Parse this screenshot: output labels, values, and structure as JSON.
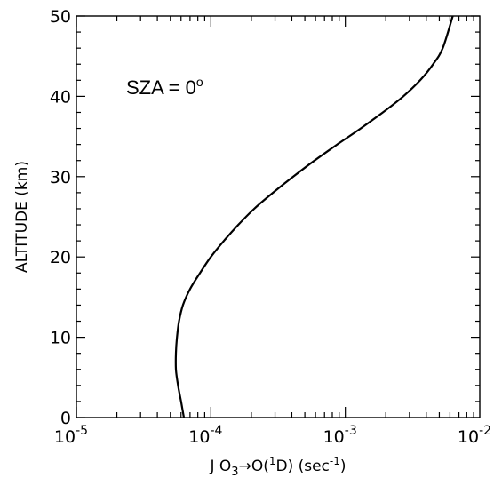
{
  "chart_data": {
    "type": "line",
    "title": "",
    "annotation": {
      "prefix": "SZA = 0",
      "superscript": "o"
    },
    "xlabel": {
      "prefix": "J O",
      "sub": "3",
      "mid": "→O(",
      "sup": "1",
      "suffix": "D) (sec",
      "sup2": "-1",
      "end": ")"
    },
    "ylabel": "ALTITUDE (km)",
    "x_scale": "log",
    "xlim": [
      1e-05,
      0.01
    ],
    "ylim": [
      0,
      50
    ],
    "x_ticks": [
      {
        "value": 1e-05,
        "base": "10",
        "exp": "-5"
      },
      {
        "value": 0.0001,
        "base": "10",
        "exp": "-4"
      },
      {
        "value": 0.001,
        "base": "10",
        "exp": "-3"
      },
      {
        "value": 0.01,
        "base": "10",
        "exp": "-2"
      }
    ],
    "y_ticks": [
      0,
      10,
      20,
      30,
      40,
      50
    ],
    "grid": false,
    "series": [
      {
        "x": [
          6.3e-05,
          6e-05,
          5.7e-05,
          5.5e-05,
          5.5e-05,
          5.6e-05,
          5.8e-05,
          6.2e-05,
          7e-05,
          8.3e-05,
          0.0001,
          0.000125,
          0.00016,
          0.00021,
          0.00029,
          0.00041,
          0.00059,
          0.00087,
          0.0013,
          0.0019,
          0.0027,
          0.0036,
          0.0045,
          0.0053,
          0.0063
        ],
        "y": [
          0,
          2,
          4,
          6,
          8,
          10,
          12,
          14,
          16,
          18,
          20,
          22,
          24,
          26,
          28,
          30,
          32,
          34,
          36,
          38,
          40,
          42,
          44,
          46,
          50
        ]
      }
    ]
  }
}
